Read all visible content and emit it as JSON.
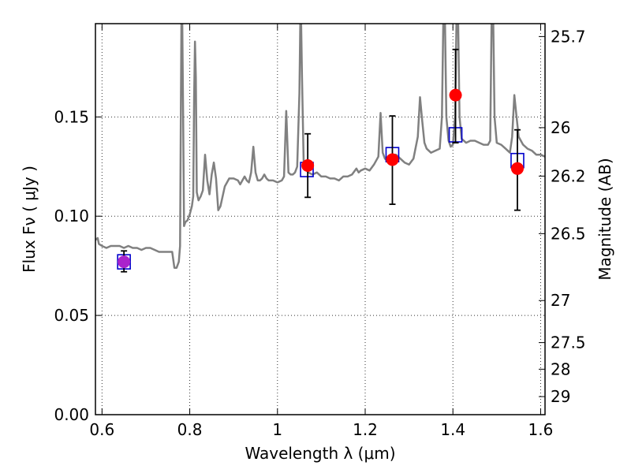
{
  "chart_data": {
    "type": "scatter",
    "xlabel": "Wavelength  λ (μm)",
    "ylabel": "Flux  Fν  ( μJy )",
    "ylabel_right": "Magnitude (AB)",
    "xlim": [
      0.585,
      1.61
    ],
    "ylim": [
      0.0,
      0.197
    ],
    "x_ticks": [
      0.6,
      0.8,
      1.0,
      1.2,
      1.4,
      1.6
    ],
    "x_tick_labels": [
      "0.6",
      "0.8",
      "1",
      "1.2",
      "1.4",
      "1.6"
    ],
    "y_ticks": [
      0.0,
      0.05,
      0.1,
      0.15
    ],
    "y_tick_labels": [
      "0.00",
      "0.05",
      "0.10",
      "0.15"
    ],
    "right_ticks": [
      {
        "label": "25.7",
        "flux": 0.1905
      },
      {
        "label": "26",
        "flux": 0.1446
      },
      {
        "label": "26.2",
        "flux": 0.1202
      },
      {
        "label": "26.5",
        "flux": 0.0912
      },
      {
        "label": "27",
        "flux": 0.0575
      },
      {
        "label": "27.5",
        "flux": 0.0363
      },
      {
        "label": "28",
        "flux": 0.0229
      },
      {
        "label": "29",
        "flux": 0.0091
      }
    ],
    "grid": true,
    "series": [
      {
        "kind": "line",
        "color": "#808080",
        "points": [
          [
            0.585,
            0.088
          ],
          [
            0.59,
            0.089
          ],
          [
            0.593,
            0.086
          ],
          [
            0.6,
            0.085
          ],
          [
            0.61,
            0.084
          ],
          [
            0.62,
            0.085
          ],
          [
            0.63,
            0.085
          ],
          [
            0.64,
            0.085
          ],
          [
            0.65,
            0.084
          ],
          [
            0.66,
            0.085
          ],
          [
            0.67,
            0.084
          ],
          [
            0.68,
            0.084
          ],
          [
            0.69,
            0.083
          ],
          [
            0.7,
            0.084
          ],
          [
            0.71,
            0.084
          ],
          [
            0.72,
            0.083
          ],
          [
            0.73,
            0.082
          ],
          [
            0.74,
            0.082
          ],
          [
            0.75,
            0.082
          ],
          [
            0.76,
            0.082
          ],
          [
            0.765,
            0.074
          ],
          [
            0.77,
            0.074
          ],
          [
            0.775,
            0.077
          ],
          [
            0.778,
            0.085
          ],
          [
            0.78,
            0.16
          ],
          [
            0.781,
            0.197
          ],
          [
            0.783,
            0.197
          ],
          [
            0.785,
            0.15
          ],
          [
            0.787,
            0.095
          ],
          [
            0.79,
            0.097
          ],
          [
            0.795,
            0.098
          ],
          [
            0.8,
            0.101
          ],
          [
            0.805,
            0.105
          ],
          [
            0.808,
            0.11
          ],
          [
            0.81,
            0.16
          ],
          [
            0.812,
            0.188
          ],
          [
            0.814,
            0.17
          ],
          [
            0.816,
            0.112
          ],
          [
            0.82,
            0.108
          ],
          [
            0.825,
            0.11
          ],
          [
            0.83,
            0.113
          ],
          [
            0.835,
            0.131
          ],
          [
            0.84,
            0.118
          ],
          [
            0.845,
            0.111
          ],
          [
            0.85,
            0.121
          ],
          [
            0.855,
            0.127
          ],
          [
            0.86,
            0.119
          ],
          [
            0.865,
            0.103
          ],
          [
            0.87,
            0.105
          ],
          [
            0.88,
            0.115
          ],
          [
            0.89,
            0.119
          ],
          [
            0.9,
            0.119
          ],
          [
            0.91,
            0.118
          ],
          [
            0.915,
            0.116
          ],
          [
            0.92,
            0.118
          ],
          [
            0.925,
            0.12
          ],
          [
            0.93,
            0.118
          ],
          [
            0.935,
            0.117
          ],
          [
            0.94,
            0.122
          ],
          [
            0.945,
            0.135
          ],
          [
            0.95,
            0.122
          ],
          [
            0.955,
            0.118
          ],
          [
            0.96,
            0.118
          ],
          [
            0.965,
            0.119
          ],
          [
            0.97,
            0.121
          ],
          [
            0.975,
            0.119
          ],
          [
            0.98,
            0.118
          ],
          [
            0.99,
            0.118
          ],
          [
            1.0,
            0.117
          ],
          [
            1.01,
            0.118
          ],
          [
            1.015,
            0.12
          ],
          [
            1.02,
            0.153
          ],
          [
            1.025,
            0.122
          ],
          [
            1.03,
            0.121
          ],
          [
            1.035,
            0.121
          ],
          [
            1.04,
            0.122
          ],
          [
            1.045,
            0.125
          ],
          [
            1.05,
            0.162
          ],
          [
            1.052,
            0.197
          ],
          [
            1.054,
            0.197
          ],
          [
            1.056,
            0.17
          ],
          [
            1.06,
            0.125
          ],
          [
            1.07,
            0.122
          ],
          [
            1.08,
            0.121
          ],
          [
            1.09,
            0.122
          ],
          [
            1.1,
            0.12
          ],
          [
            1.11,
            0.12
          ],
          [
            1.12,
            0.119
          ],
          [
            1.13,
            0.119
          ],
          [
            1.14,
            0.118
          ],
          [
            1.15,
            0.12
          ],
          [
            1.16,
            0.12
          ],
          [
            1.17,
            0.121
          ],
          [
            1.18,
            0.124
          ],
          [
            1.185,
            0.122
          ],
          [
            1.19,
            0.123
          ],
          [
            1.2,
            0.124
          ],
          [
            1.21,
            0.123
          ],
          [
            1.22,
            0.126
          ],
          [
            1.23,
            0.13
          ],
          [
            1.235,
            0.152
          ],
          [
            1.24,
            0.132
          ],
          [
            1.245,
            0.129
          ],
          [
            1.25,
            0.128
          ],
          [
            1.26,
            0.13
          ],
          [
            1.27,
            0.131
          ],
          [
            1.28,
            0.129
          ],
          [
            1.29,
            0.127
          ],
          [
            1.3,
            0.126
          ],
          [
            1.31,
            0.129
          ],
          [
            1.32,
            0.14
          ],
          [
            1.325,
            0.16
          ],
          [
            1.33,
            0.148
          ],
          [
            1.335,
            0.137
          ],
          [
            1.34,
            0.134
          ],
          [
            1.35,
            0.132
          ],
          [
            1.36,
            0.133
          ],
          [
            1.37,
            0.134
          ],
          [
            1.375,
            0.15
          ],
          [
            1.378,
            0.197
          ],
          [
            1.382,
            0.197
          ],
          [
            1.385,
            0.15
          ],
          [
            1.39,
            0.138
          ],
          [
            1.395,
            0.135
          ],
          [
            1.4,
            0.136
          ],
          [
            1.405,
            0.15
          ],
          [
            1.408,
            0.197
          ],
          [
            1.412,
            0.197
          ],
          [
            1.415,
            0.15
          ],
          [
            1.42,
            0.139
          ],
          [
            1.43,
            0.137
          ],
          [
            1.44,
            0.138
          ],
          [
            1.45,
            0.138
          ],
          [
            1.46,
            0.137
          ],
          [
            1.47,
            0.136
          ],
          [
            1.48,
            0.136
          ],
          [
            1.485,
            0.138
          ],
          [
            1.488,
            0.197
          ],
          [
            1.492,
            0.197
          ],
          [
            1.495,
            0.15
          ],
          [
            1.5,
            0.137
          ],
          [
            1.51,
            0.136
          ],
          [
            1.52,
            0.134
          ],
          [
            1.53,
            0.132
          ],
          [
            1.535,
            0.14
          ],
          [
            1.54,
            0.161
          ],
          [
            1.545,
            0.15
          ],
          [
            1.55,
            0.14
          ],
          [
            1.56,
            0.136
          ],
          [
            1.57,
            0.134
          ],
          [
            1.58,
            0.133
          ],
          [
            1.59,
            0.131
          ],
          [
            1.6,
            0.131
          ],
          [
            1.61,
            0.13
          ]
        ]
      },
      {
        "kind": "squares",
        "color": "#0000cc",
        "points": [
          [
            0.65,
            0.077
          ],
          [
            1.067,
            0.1235
          ],
          [
            1.262,
            0.131
          ],
          [
            1.406,
            0.141
          ],
          [
            1.547,
            0.128
          ]
        ]
      },
      {
        "kind": "errorbar",
        "color": "#000000",
        "points": [
          {
            "x": 0.65,
            "y": 0.077,
            "ylo": 0.072,
            "yhi": 0.0825
          },
          {
            "x": 1.069,
            "y": 0.1255,
            "ylo": 0.1095,
            "yhi": 0.1415
          },
          {
            "x": 1.262,
            "y": 0.1285,
            "ylo": 0.106,
            "yhi": 0.1505
          },
          {
            "x": 1.406,
            "y": 0.161,
            "ylo": 0.137,
            "yhi": 0.184
          },
          {
            "x": 1.547,
            "y": 0.124,
            "ylo": 0.103,
            "yhi": 0.1435
          }
        ]
      },
      {
        "kind": "circles",
        "points": [
          {
            "x": 0.65,
            "y": 0.077,
            "color": "#aa22cc"
          },
          {
            "x": 1.069,
            "y": 0.1255,
            "color": "#ff0000"
          },
          {
            "x": 1.262,
            "y": 0.1285,
            "color": "#ff0000"
          },
          {
            "x": 1.406,
            "y": 0.161,
            "color": "#ff0000"
          },
          {
            "x": 1.547,
            "y": 0.124,
            "color": "#ff0000"
          }
        ]
      }
    ]
  }
}
